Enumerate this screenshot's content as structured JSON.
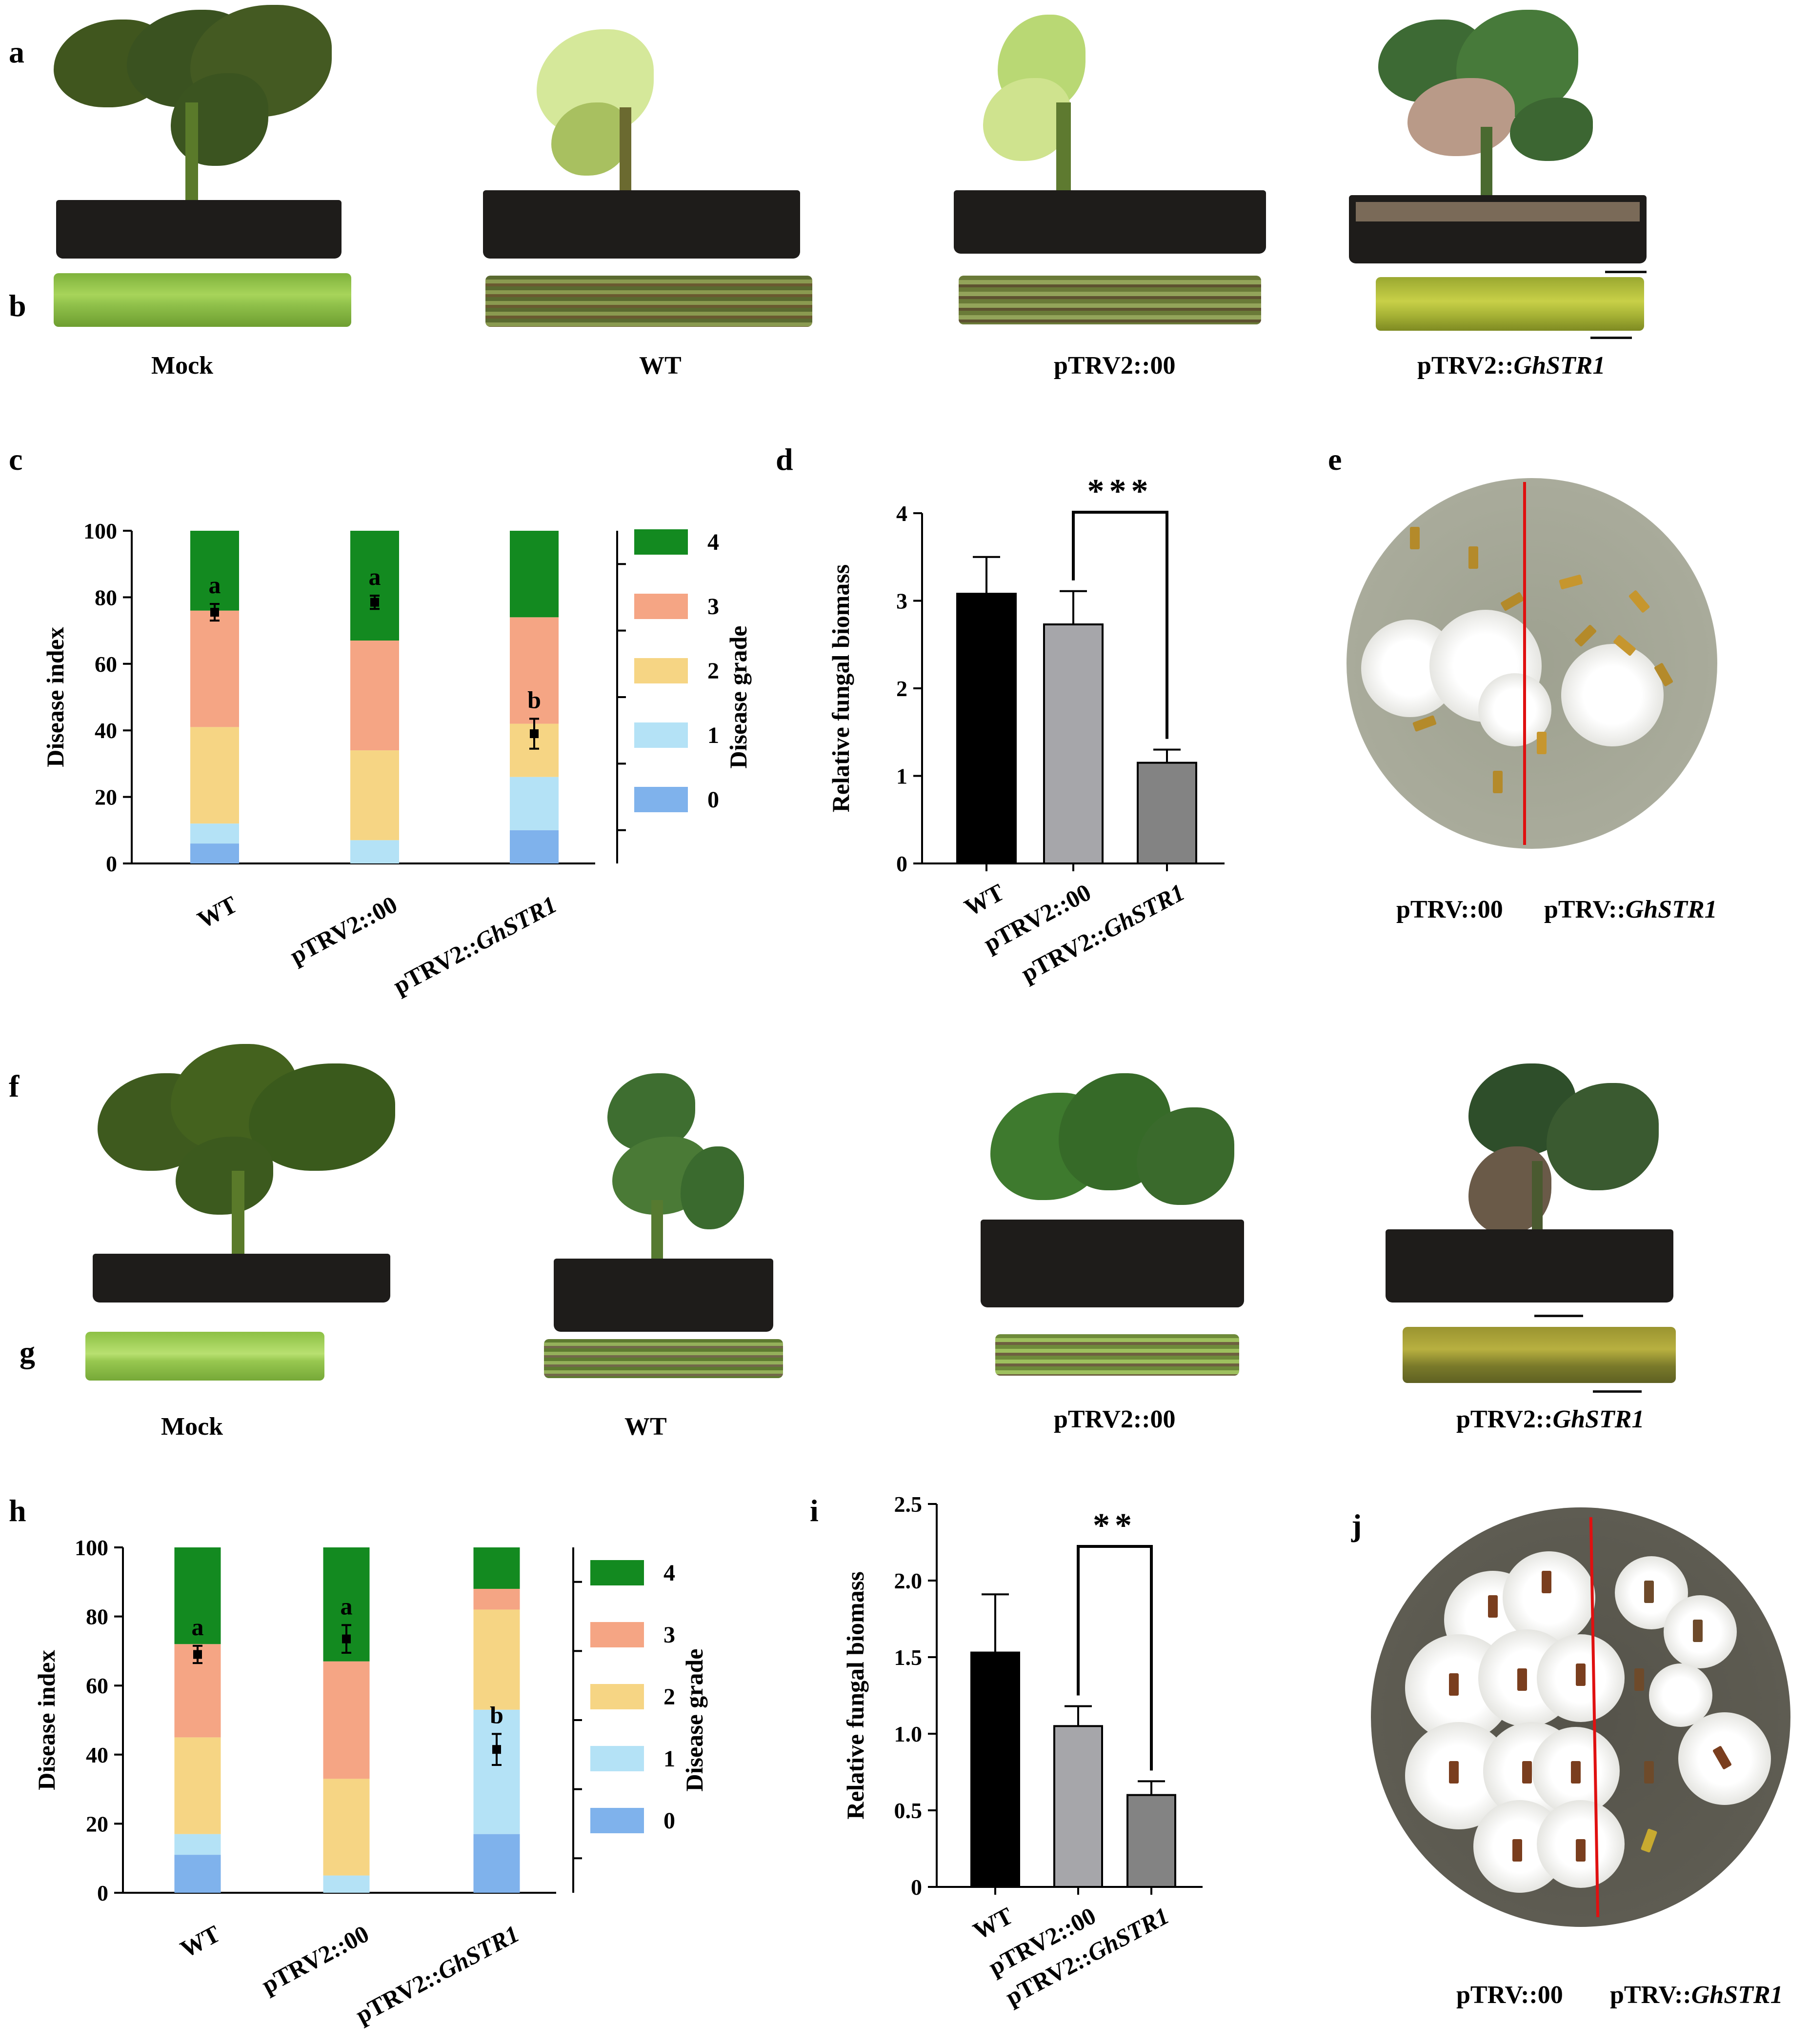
{
  "panels": {
    "a": "a",
    "b": "b",
    "c": "c",
    "d": "d",
    "e": "e",
    "f": "f",
    "g": "g",
    "h": "h",
    "i": "i",
    "j": "j"
  },
  "photo_labels_top": {
    "mock": "Mock",
    "wt": "WT",
    "ptrv2_00": "pTRV2::00",
    "ptrv2_str1_prefix": "pTRV2::",
    "ptrv2_str1_gene": "GhSTR1"
  },
  "photo_labels_bottom": {
    "mock": "Mock",
    "wt": "WT",
    "ptrv2_00": "pTRV2::00",
    "ptrv2_str1_prefix": "pTRV2::",
    "ptrv2_str1_gene": "GhSTR1"
  },
  "plate_e": {
    "left": "pTRV::00",
    "right_prefix": "pTRV::",
    "right_gene": "GhSTR1"
  },
  "plate_j": {
    "left": "pTRV::00",
    "right_prefix": "pTRV::",
    "right_gene": "GhSTR1"
  },
  "colors": {
    "grade0": "#7fb2ec",
    "grade1": "#b4e2f6",
    "grade2": "#f6d584",
    "grade3": "#f5a584",
    "grade4": "#138a20",
    "bar_wt": "#000000",
    "bar_00": "#a6a6aa",
    "bar_str1": "#838383"
  },
  "chart_data": [
    {
      "panel": "c",
      "type": "bar",
      "stacked": true,
      "categories": [
        "WT",
        "pTRV2::00",
        "pTRV2::GhSTR1"
      ],
      "ylabel": "Disease index",
      "y2label": "Disease grade",
      "ylim": [
        0,
        100
      ],
      "yticks": [
        0,
        20,
        40,
        60,
        80,
        100
      ],
      "legend": [
        "4",
        "3",
        "2",
        "1",
        "0"
      ],
      "series": [
        {
          "name": "0",
          "values": [
            6,
            0,
            10
          ]
        },
        {
          "name": "1",
          "values": [
            6,
            7,
            16
          ]
        },
        {
          "name": "2",
          "values": [
            29,
            27,
            16
          ]
        },
        {
          "name": "3",
          "values": [
            35,
            33,
            32
          ]
        },
        {
          "name": "4",
          "values": [
            24,
            33,
            26
          ]
        }
      ],
      "disease_index": [
        75.5,
        78.5,
        39
      ],
      "disease_index_err": [
        2.5,
        2,
        4.5
      ],
      "letters": [
        "a",
        "a",
        "b"
      ]
    },
    {
      "panel": "d",
      "type": "bar",
      "categories": [
        "WT",
        "pTRV2::00",
        "pTRV2::GhSTR1"
      ],
      "values": [
        3.08,
        2.73,
        1.15
      ],
      "errors": [
        0.42,
        0.38,
        0.15
      ],
      "ylabel": "Relative fungal biomass",
      "ylim": [
        0,
        4
      ],
      "yticks": [
        "0",
        "1",
        "2",
        "3",
        "4"
      ],
      "significance": "***"
    },
    {
      "panel": "h",
      "type": "bar",
      "stacked": true,
      "categories": [
        "WT",
        "pTRV2::00",
        "pTRV2::GhSTR1"
      ],
      "ylabel": "Disease index",
      "y2label": "Disease grade",
      "ylim": [
        0,
        100
      ],
      "yticks": [
        0,
        20,
        40,
        60,
        80,
        100
      ],
      "legend": [
        "4",
        "3",
        "2",
        "1",
        "0"
      ],
      "series": [
        {
          "name": "0",
          "values": [
            11,
            0,
            17
          ]
        },
        {
          "name": "1",
          "values": [
            6,
            5,
            36
          ]
        },
        {
          "name": "2",
          "values": [
            28,
            28,
            29
          ]
        },
        {
          "name": "3",
          "values": [
            27,
            34,
            6
          ]
        },
        {
          "name": "4",
          "values": [
            28,
            33,
            12
          ]
        }
      ],
      "disease_index": [
        69,
        73.5,
        41.5
      ],
      "disease_index_err": [
        2.5,
        4,
        4.5
      ],
      "letters": [
        "a",
        "a",
        "b"
      ]
    },
    {
      "panel": "i",
      "type": "bar",
      "categories": [
        "WT",
        "pTRV2::00",
        "pTRV2::GhSTR1"
      ],
      "values": [
        1.53,
        1.05,
        0.6
      ],
      "errors": [
        0.38,
        0.13,
        0.09
      ],
      "ylabel": "Relative fungal biomass",
      "ylim": [
        0,
        2.5
      ],
      "yticks": [
        "0",
        "0.5",
        "1.0",
        "1.5",
        "2.0",
        "2.5"
      ],
      "significance": "**"
    }
  ]
}
